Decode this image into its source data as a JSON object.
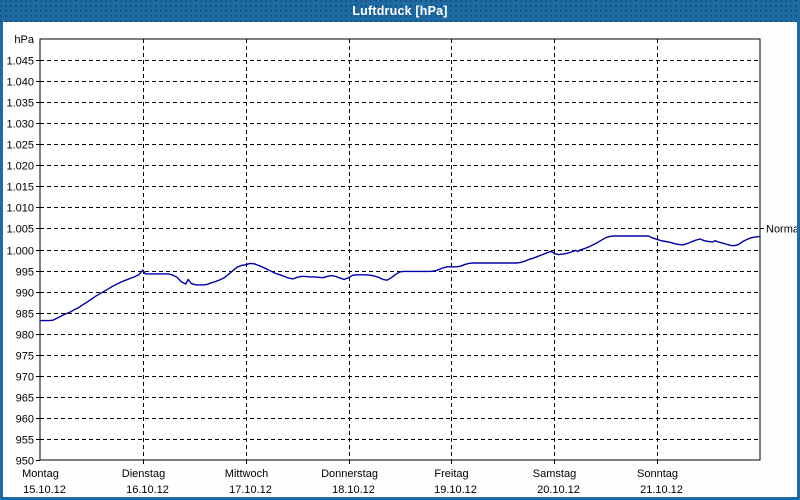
{
  "window": {
    "title": "Luftdruck [hPa]"
  },
  "colors": {
    "titlebar": "#1e6ba3",
    "frame": "#1e6ba3",
    "line": "#0000a8",
    "grid": "#000000",
    "axis": "#000000",
    "text": "#000000",
    "plot_bg": "#ffffff",
    "title_text": "#ffffff"
  },
  "chart_data": {
    "type": "line",
    "title": "Luftdruck [hPa]",
    "unit_label": "hPa",
    "ylim": [
      950,
      1050
    ],
    "grid": "dashed",
    "legend_position": "none",
    "y_ticks": [
      {
        "value": 1045,
        "label": "1.045"
      },
      {
        "value": 1040,
        "label": "1.040"
      },
      {
        "value": 1035,
        "label": "1.035"
      },
      {
        "value": 1030,
        "label": "1.030"
      },
      {
        "value": 1025,
        "label": "1.025"
      },
      {
        "value": 1020,
        "label": "1.020"
      },
      {
        "value": 1015,
        "label": "1.015"
      },
      {
        "value": 1010,
        "label": "1.010"
      },
      {
        "value": 1005,
        "label": "1.005"
      },
      {
        "value": 1000,
        "label": "1.000"
      },
      {
        "value": 995,
        "label": "995"
      },
      {
        "value": 990,
        "label": "990"
      },
      {
        "value": 985,
        "label": "985"
      },
      {
        "value": 980,
        "label": "980"
      },
      {
        "value": 975,
        "label": "975"
      },
      {
        "value": 970,
        "label": "970"
      },
      {
        "value": 965,
        "label": "965"
      },
      {
        "value": 960,
        "label": "960"
      },
      {
        "value": 955,
        "label": "955"
      },
      {
        "value": 950,
        "label": "950"
      }
    ],
    "x_days": [
      {
        "name": "Montag",
        "date": "15.10.12"
      },
      {
        "name": "Dienstag",
        "date": "16.10.12"
      },
      {
        "name": "Mittwoch",
        "date": "17.10.12"
      },
      {
        "name": "Donnerstag",
        "date": "18.10.12"
      },
      {
        "name": "Freitag",
        "date": "19.10.12"
      },
      {
        "name": "Samstag",
        "date": "20.10.12"
      },
      {
        "name": "Sonntag",
        "date": "21.10.12"
      }
    ],
    "xlim_hours": [
      0,
      168
    ],
    "normal_marker": {
      "label": "Normal",
      "value": 1005
    },
    "series": [
      {
        "name": "Luftdruck",
        "points": [
          [
            0,
            983.1
          ],
          [
            1,
            983.1
          ],
          [
            2,
            983.1
          ],
          [
            3,
            983.2
          ],
          [
            4,
            983.7
          ],
          [
            5,
            984.2
          ],
          [
            6,
            984.7
          ],
          [
            7,
            985.1
          ],
          [
            8,
            985.7
          ],
          [
            9,
            986.2
          ],
          [
            10,
            986.9
          ],
          [
            11,
            987.5
          ],
          [
            12,
            988.2
          ],
          [
            13,
            988.9
          ],
          [
            14,
            989.5
          ],
          [
            15,
            990.1
          ],
          [
            16,
            990.7
          ],
          [
            17,
            991.3
          ],
          [
            18,
            991.8
          ],
          [
            19,
            992.3
          ],
          [
            20,
            992.7
          ],
          [
            21,
            993.1
          ],
          [
            22,
            993.5
          ],
          [
            23,
            994.0
          ],
          [
            24,
            995.1
          ],
          [
            24.5,
            994.3
          ],
          [
            25,
            994.2
          ],
          [
            27,
            994.2
          ],
          [
            29,
            994.2
          ],
          [
            30,
            994.2
          ],
          [
            31,
            993.9
          ],
          [
            32,
            993.4
          ],
          [
            33,
            992.3
          ],
          [
            34,
            991.8
          ],
          [
            34.6,
            992.9
          ],
          [
            35.3,
            991.9
          ],
          [
            36.5,
            991.6
          ],
          [
            38,
            991.6
          ],
          [
            39,
            991.7
          ],
          [
            40,
            992.1
          ],
          [
            41,
            992.4
          ],
          [
            42,
            992.8
          ],
          [
            43,
            993.3
          ],
          [
            44,
            994.1
          ],
          [
            45,
            995.0
          ],
          [
            46,
            995.8
          ],
          [
            47,
            996.2
          ],
          [
            48,
            996.4
          ],
          [
            49,
            996.7
          ],
          [
            50,
            996.6
          ],
          [
            51,
            996.2
          ],
          [
            52,
            995.8
          ],
          [
            53,
            995.3
          ],
          [
            54,
            994.8
          ],
          [
            55,
            994.3
          ],
          [
            56,
            994.0
          ],
          [
            57,
            993.6
          ],
          [
            58,
            993.2
          ],
          [
            59,
            993.0
          ],
          [
            60,
            993.4
          ],
          [
            61,
            993.6
          ],
          [
            62,
            993.6
          ],
          [
            63,
            993.5
          ],
          [
            64,
            993.5
          ],
          [
            65,
            993.4
          ],
          [
            66,
            993.3
          ],
          [
            67,
            993.6
          ],
          [
            68,
            993.8
          ],
          [
            69,
            993.6
          ],
          [
            70,
            993.2
          ],
          [
            71,
            992.9
          ],
          [
            72,
            993.3
          ],
          [
            73,
            993.9
          ],
          [
            74,
            994.0
          ],
          [
            76,
            994.0
          ],
          [
            77,
            993.9
          ],
          [
            78,
            993.7
          ],
          [
            79,
            993.4
          ],
          [
            80,
            992.9
          ],
          [
            81,
            992.7
          ],
          [
            82,
            993.3
          ],
          [
            83,
            994.1
          ],
          [
            84,
            994.7
          ],
          [
            85,
            994.8
          ],
          [
            88,
            994.8
          ],
          [
            91,
            994.8
          ],
          [
            92,
            994.9
          ],
          [
            93,
            995.2
          ],
          [
            94,
            995.6
          ],
          [
            95,
            995.9
          ],
          [
            96,
            995.9
          ],
          [
            97,
            995.9
          ],
          [
            98,
            996.0
          ],
          [
            99,
            996.4
          ],
          [
            100,
            996.7
          ],
          [
            101,
            996.8
          ],
          [
            104,
            996.8
          ],
          [
            108,
            996.8
          ],
          [
            111,
            996.8
          ],
          [
            112,
            996.9
          ],
          [
            113,
            997.2
          ],
          [
            114,
            997.6
          ],
          [
            115,
            997.9
          ],
          [
            116,
            998.3
          ],
          [
            117,
            998.7
          ],
          [
            118,
            999.1
          ],
          [
            119,
            999.5
          ],
          [
            119.6,
            999.4
          ],
          [
            120,
            999.0
          ],
          [
            121,
            998.8
          ],
          [
            122,
            998.9
          ],
          [
            123,
            999.1
          ],
          [
            124,
            999.4
          ],
          [
            125,
            999.8
          ],
          [
            125.5,
            999.5
          ],
          [
            126,
            999.9
          ],
          [
            127,
            1000.2
          ],
          [
            128,
            1000.6
          ],
          [
            129,
            1001.1
          ],
          [
            130,
            1001.6
          ],
          [
            131,
            1002.2
          ],
          [
            132,
            1002.8
          ],
          [
            133,
            1003.1
          ],
          [
            134,
            1003.2
          ],
          [
            137,
            1003.2
          ],
          [
            140,
            1003.2
          ],
          [
            142,
            1003.2
          ],
          [
            143,
            1002.7
          ],
          [
            144,
            1002.4
          ],
          [
            145,
            1002.1
          ],
          [
            146,
            1001.9
          ],
          [
            147,
            1001.7
          ],
          [
            148,
            1001.4
          ],
          [
            149,
            1001.2
          ],
          [
            150,
            1001.1
          ],
          [
            151,
            1001.4
          ],
          [
            152,
            1001.8
          ],
          [
            153,
            1002.2
          ],
          [
            154,
            1002.5
          ],
          [
            155,
            1002.1
          ],
          [
            156,
            1001.9
          ],
          [
            157,
            1001.8
          ],
          [
            157.5,
            1002.1
          ],
          [
            158,
            1001.9
          ],
          [
            159,
            1001.6
          ],
          [
            160,
            1001.3
          ],
          [
            161,
            1001.0
          ],
          [
            162,
            1000.9
          ],
          [
            163,
            1001.2
          ],
          [
            164,
            1001.9
          ],
          [
            165,
            1002.4
          ],
          [
            166,
            1002.8
          ],
          [
            167,
            1003.0
          ],
          [
            168,
            1003.1
          ]
        ]
      }
    ]
  }
}
